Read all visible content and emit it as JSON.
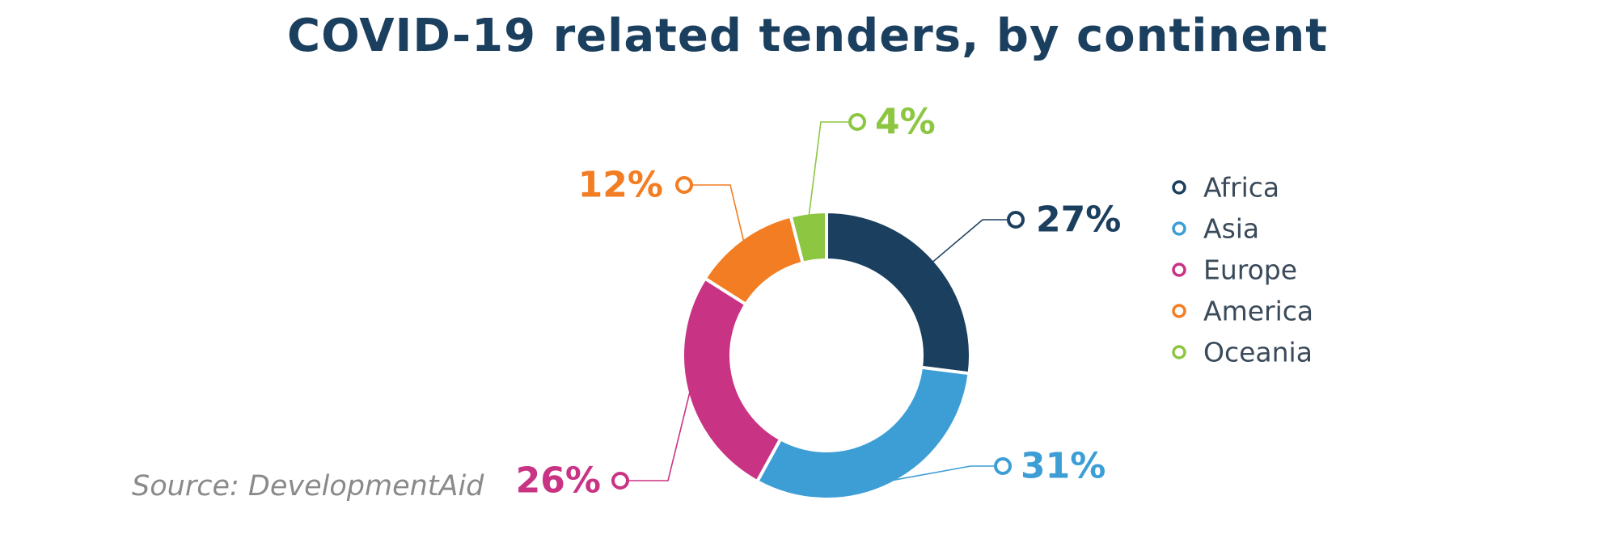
{
  "chart_data": {
    "type": "pie",
    "donut": true,
    "title": "COVID-19 related tenders, by continent",
    "categories": [
      "Africa",
      "Asia",
      "Europe",
      "America",
      "Oceania"
    ],
    "values": [
      27,
      31,
      26,
      12,
      4
    ],
    "value_labels": [
      "27%",
      "31%",
      "26%",
      "12%",
      "4%"
    ],
    "colors": [
      "#1b3f5e",
      "#3d9ed6",
      "#c93384",
      "#f27d22",
      "#8dc641"
    ],
    "legend_position": "right",
    "source": "Source: DevelopmentAid"
  }
}
